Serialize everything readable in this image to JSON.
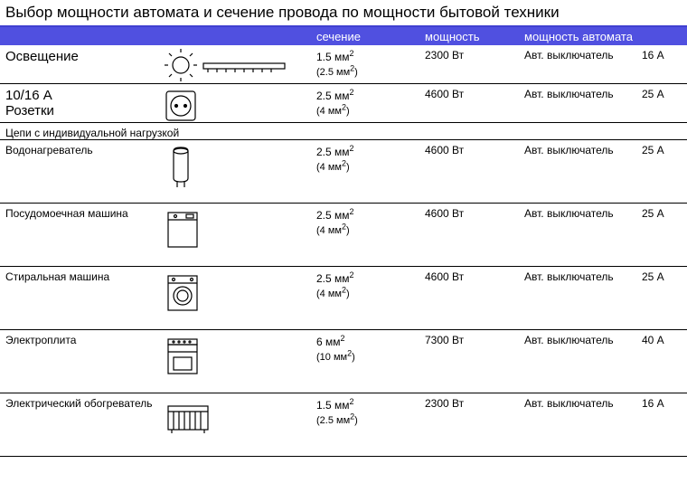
{
  "title": "Выбор мощности автомата и сечение провода по мощности бытовой техники",
  "headers": {
    "c3": "сечение",
    "c4": "мощность",
    "c5": "мощность автомата"
  },
  "section_label": "Цепи с индивидуальной нагрузкой",
  "rows": [
    {
      "label": "Освещение",
      "sub": "",
      "icon": "lamp",
      "sec1": "1.5 мм",
      "sec2": "(2.5 мм",
      "power": "2300 Вт",
      "breaker": "Авт. выключатель",
      "amp": "16 А",
      "tall": false,
      "big": true
    },
    {
      "label": "10/16 А",
      "sub": "Розетки",
      "icon": "socket",
      "sec1": "2.5 мм",
      "sec2": "(4 мм",
      "power": "4600 Вт",
      "breaker": "Авт. выключатель",
      "amp": "25 А",
      "tall": false,
      "big": true
    },
    {
      "label": "Водонагреватель",
      "sub": "",
      "icon": "boiler",
      "sec1": "2.5 мм",
      "sec2": "(4 мм",
      "power": "4600 Вт",
      "breaker": "Авт. выключатель",
      "amp": "25 А",
      "tall": true
    },
    {
      "label": "Посудомоечная машина",
      "sub": "",
      "icon": "dishwasher",
      "sec1": "2.5 мм",
      "sec2": "(4 мм",
      "power": "4600 Вт",
      "breaker": "Авт. выключатель",
      "amp": "25 А",
      "tall": true
    },
    {
      "label": "Стиральная машина",
      "sub": "",
      "icon": "washer",
      "sec1": "2.5 мм",
      "sec2": "(4 мм",
      "power": "4600 Вт",
      "breaker": "Авт. выключатель",
      "amp": "25 А",
      "tall": true
    },
    {
      "label": "Электроплита",
      "sub": "",
      "icon": "stove",
      "sec1": "6 мм",
      "sec2": "(10 мм",
      "power": "7300 Вт",
      "breaker": "Авт. выключатель",
      "amp": "40 А",
      "tall": true
    },
    {
      "label": "Электрический обогреватель",
      "sub": "",
      "icon": "heater",
      "sec1": "1.5 мм",
      "sec2": "(2.5 мм",
      "power": "2300 Вт",
      "breaker": "Авт. выключатель",
      "amp": "16 А",
      "tall": true
    }
  ],
  "colors": {
    "header_bg": "#5050e0",
    "header_text": "#ffffff",
    "border": "#000000"
  }
}
